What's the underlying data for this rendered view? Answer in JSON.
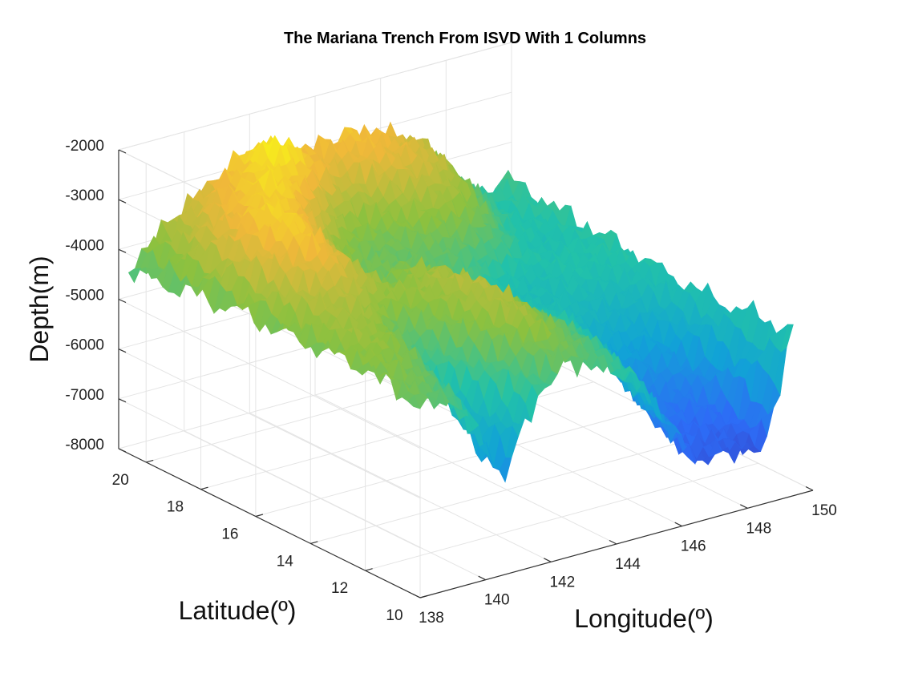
{
  "chart_data": {
    "type": "surface",
    "title": "The Mariana Trench From ISVD With 1 Columns",
    "xlabel": "Longitude(º)",
    "ylabel": "Latitude(º)",
    "zlabel": "Depth(m)",
    "x_ticks": [
      "138",
      "140",
      "142",
      "144",
      "146",
      "148",
      "150"
    ],
    "y_ticks": [
      "10",
      "12",
      "14",
      "16",
      "18",
      "20"
    ],
    "z_ticks": [
      "-8000",
      "-7000",
      "-6000",
      "-5000",
      "-4000",
      "-3000",
      "-2000"
    ],
    "xlim": [
      138,
      150
    ],
    "ylim": [
      10,
      21
    ],
    "zlim": [
      -8000,
      -2000
    ],
    "grid": true,
    "colormap": "parula",
    "colormap_colors": [
      "#3e26a8",
      "#2d6cf6",
      "#11a3d6",
      "#22c2a9",
      "#8cc13f",
      "#f0b83a",
      "#f9fb14"
    ],
    "surface_profiles": {
      "lat_rows": [
        10,
        11,
        12,
        13,
        14,
        15,
        16,
        17,
        18,
        19,
        20,
        21
      ],
      "lon_cols": [
        138,
        139,
        140,
        141,
        142,
        143,
        144,
        145,
        146,
        147,
        148,
        149,
        150
      ],
      "depth": [
        [
          -4300,
          -4500,
          -5000,
          -6600,
          -5200,
          -4500,
          -4800,
          -5000,
          -6200,
          -7200,
          -7000,
          -7300,
          -4600
        ],
        [
          -4200,
          -4300,
          -4700,
          -6200,
          -4800,
          -4200,
          -4500,
          -4900,
          -5900,
          -7000,
          -7000,
          -7100,
          -4700
        ],
        [
          -4100,
          -4100,
          -4400,
          -5600,
          -4400,
          -3800,
          -4300,
          -4700,
          -5600,
          -6700,
          -6900,
          -6800,
          -4800
        ],
        [
          -4200,
          -3900,
          -4100,
          -5000,
          -4100,
          -3600,
          -4200,
          -4700,
          -5200,
          -6300,
          -6600,
          -6400,
          -4900
        ],
        [
          -4300,
          -3800,
          -3900,
          -4500,
          -4000,
          -3600,
          -4300,
          -4800,
          -5000,
          -5800,
          -6000,
          -5900,
          -5000
        ],
        [
          -4400,
          -3700,
          -3600,
          -3900,
          -3900,
          -3700,
          -4400,
          -4800,
          -5100,
          -5300,
          -5500,
          -5400,
          -5000
        ],
        [
          -4500,
          -3500,
          -3000,
          -3500,
          -4200,
          -3900,
          -4500,
          -4700,
          -5200,
          -5200,
          -5100,
          -5100,
          -5000
        ],
        [
          -4600,
          -3300,
          -2600,
          -3400,
          -4400,
          -4200,
          -4400,
          -4500,
          -4900,
          -5200,
          -5000,
          -5000,
          -4900
        ],
        [
          -4700,
          -3300,
          -2700,
          -2900,
          -3800,
          -4300,
          -4300,
          -4200,
          -4200,
          -4500,
          -5100,
          -5100,
          -4900
        ],
        [
          -4700,
          -3500,
          -3000,
          -2500,
          -3000,
          -3800,
          -4100,
          -3800,
          -3600,
          -3900,
          -4800,
          -5100,
          -4800
        ],
        [
          -4700,
          -3800,
          -3200,
          -2900,
          -2200,
          -2800,
          -3400,
          -3100,
          -3200,
          -3500,
          -4400,
          -5000,
          -4800
        ],
        [
          -4700,
          -4000,
          -3500,
          -3100,
          -2700,
          -3000,
          -3000,
          -2900,
          -3100,
          -3400,
          -4300,
          -4900,
          -4700
        ]
      ]
    }
  }
}
